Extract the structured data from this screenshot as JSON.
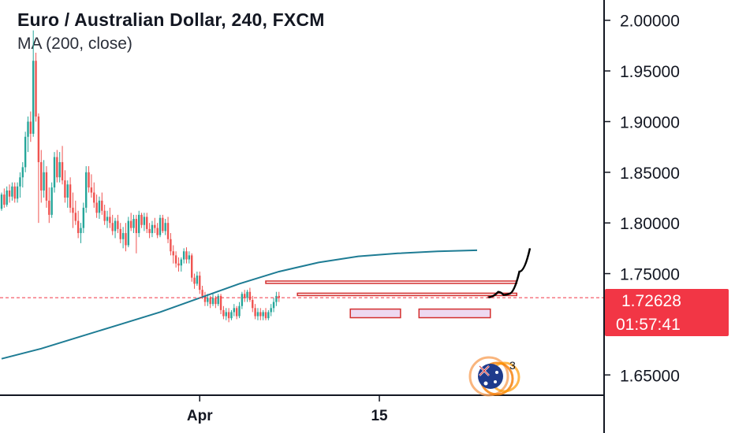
{
  "header": {
    "title": "Euro / Australian Dollar, 240, FXCM",
    "indicator": "MA (200, close)"
  },
  "price_axis": {
    "ticks": [
      "2.00000",
      "1.95000",
      "1.90000",
      "1.85000",
      "1.80000",
      "1.75000",
      "1.65000"
    ]
  },
  "time_axis": {
    "ticks": [
      "Apr",
      "15"
    ]
  },
  "last_price": {
    "value": "1.72628",
    "countdown": "01:57:41"
  },
  "badge": {
    "count": "3",
    "icon": "australia-flag-icon"
  },
  "colors": {
    "up": "#26a69a",
    "down": "#ef5350",
    "ma": "#1e7c94",
    "level": "#d32f2f",
    "price_badge": "#f23645",
    "axis": "#131722"
  },
  "chart_data": {
    "type": "candlestick",
    "title": "Euro / Australian Dollar, 240, FXCM",
    "ylim": [
      1.63,
      2.02
    ],
    "yticks": [
      2.0,
      1.95,
      1.9,
      1.85,
      1.8,
      1.75,
      1.65
    ],
    "xticks": [
      {
        "label": "Apr",
        "bar": 75
      },
      {
        "label": "15",
        "bar": 143
      }
    ],
    "candles": [
      [
        1.814,
        1.83,
        1.812,
        1.828
      ],
      [
        1.828,
        1.834,
        1.815,
        1.818
      ],
      [
        1.818,
        1.836,
        1.816,
        1.832
      ],
      [
        1.832,
        1.838,
        1.82,
        1.826
      ],
      [
        1.826,
        1.84,
        1.822,
        1.836
      ],
      [
        1.836,
        1.84,
        1.82,
        1.824
      ],
      [
        1.824,
        1.84,
        1.82,
        1.836
      ],
      [
        1.836,
        1.85,
        1.825,
        1.845
      ],
      [
        1.845,
        1.86,
        1.835,
        1.855
      ],
      [
        1.855,
        1.89,
        1.85,
        1.885
      ],
      [
        1.885,
        1.905,
        1.87,
        1.9
      ],
      [
        1.9,
        1.91,
        1.88,
        1.888
      ],
      [
        1.888,
        1.99,
        1.885,
        1.96
      ],
      [
        1.96,
        1.968,
        1.9,
        1.905
      ],
      [
        1.905,
        1.908,
        1.8,
        1.86
      ],
      [
        1.86,
        1.872,
        1.82,
        1.832
      ],
      [
        1.832,
        1.862,
        1.825,
        1.85
      ],
      [
        1.85,
        1.856,
        1.815,
        1.822
      ],
      [
        1.822,
        1.835,
        1.8,
        1.808
      ],
      [
        1.808,
        1.84,
        1.805,
        1.835
      ],
      [
        1.835,
        1.87,
        1.83,
        1.865
      ],
      [
        1.865,
        1.872,
        1.84,
        1.845
      ],
      [
        1.845,
        1.87,
        1.84,
        1.86
      ],
      [
        1.86,
        1.876,
        1.838,
        1.842
      ],
      [
        1.842,
        1.852,
        1.82,
        1.825
      ],
      [
        1.825,
        1.842,
        1.815,
        1.838
      ],
      [
        1.838,
        1.845,
        1.81,
        1.815
      ],
      [
        1.815,
        1.83,
        1.795,
        1.81
      ],
      [
        1.81,
        1.822,
        1.798,
        1.802
      ],
      [
        1.802,
        1.812,
        1.785,
        1.79
      ],
      [
        1.79,
        1.8,
        1.78,
        1.795
      ],
      [
        1.795,
        1.82,
        1.79,
        1.815
      ],
      [
        1.815,
        1.856,
        1.81,
        1.85
      ],
      [
        1.85,
        1.856,
        1.83,
        1.835
      ],
      [
        1.835,
        1.848,
        1.825,
        1.83
      ],
      [
        1.83,
        1.84,
        1.815,
        1.82
      ],
      [
        1.82,
        1.828,
        1.805,
        1.81
      ],
      [
        1.81,
        1.826,
        1.804,
        1.822
      ],
      [
        1.822,
        1.83,
        1.808,
        1.812
      ],
      [
        1.812,
        1.818,
        1.798,
        1.802
      ],
      [
        1.802,
        1.812,
        1.795,
        1.806
      ],
      [
        1.806,
        1.815,
        1.795,
        1.8
      ],
      [
        1.8,
        1.808,
        1.788,
        1.792
      ],
      [
        1.792,
        1.805,
        1.785,
        1.802
      ],
      [
        1.802,
        1.808,
        1.79,
        1.794
      ],
      [
        1.794,
        1.8,
        1.78,
        1.784
      ],
      [
        1.784,
        1.796,
        1.775,
        1.79
      ],
      [
        1.79,
        1.8,
        1.772,
        1.778
      ],
      [
        1.778,
        1.806,
        1.776,
        1.802
      ],
      [
        1.802,
        1.81,
        1.792,
        1.795
      ],
      [
        1.795,
        1.808,
        1.79,
        1.804
      ],
      [
        1.804,
        1.808,
        1.77,
        1.79
      ],
      [
        1.79,
        1.812,
        1.786,
        1.808
      ],
      [
        1.808,
        1.81,
        1.795,
        1.798
      ],
      [
        1.798,
        1.81,
        1.792,
        1.806
      ],
      [
        1.806,
        1.81,
        1.79,
        1.794
      ],
      [
        1.794,
        1.8,
        1.785,
        1.79
      ],
      [
        1.79,
        1.802,
        1.786,
        1.798
      ],
      [
        1.798,
        1.805,
        1.79,
        1.795
      ],
      [
        1.795,
        1.8,
        1.785,
        1.788
      ],
      [
        1.788,
        1.808,
        1.786,
        1.805
      ],
      [
        1.805,
        1.808,
        1.79,
        1.792
      ],
      [
        1.792,
        1.804,
        1.788,
        1.8
      ],
      [
        1.8,
        1.806,
        1.78,
        1.784
      ],
      [
        1.784,
        1.79,
        1.768,
        1.772
      ],
      [
        1.772,
        1.778,
        1.76,
        1.768
      ],
      [
        1.768,
        1.772,
        1.756,
        1.76
      ],
      [
        1.76,
        1.766,
        1.752,
        1.758
      ],
      [
        1.758,
        1.766,
        1.752,
        1.764
      ],
      [
        1.764,
        1.775,
        1.76,
        1.772
      ],
      [
        1.772,
        1.776,
        1.76,
        1.764
      ],
      [
        1.764,
        1.772,
        1.76,
        1.768
      ],
      [
        1.768,
        1.77,
        1.742,
        1.746
      ],
      [
        1.746,
        1.75,
        1.735,
        1.74
      ],
      [
        1.74,
        1.752,
        1.738,
        1.748
      ],
      [
        1.748,
        1.752,
        1.73,
        1.734
      ],
      [
        1.734,
        1.738,
        1.725,
        1.728
      ],
      [
        1.728,
        1.732,
        1.718,
        1.722
      ],
      [
        1.722,
        1.73,
        1.718,
        1.726
      ],
      [
        1.726,
        1.728,
        1.716,
        1.72
      ],
      [
        1.72,
        1.73,
        1.718,
        1.726
      ],
      [
        1.726,
        1.728,
        1.716,
        1.72
      ],
      [
        1.72,
        1.73,
        1.718,
        1.728
      ],
      [
        1.728,
        1.73,
        1.71,
        1.714
      ],
      [
        1.714,
        1.718,
        1.705,
        1.708
      ],
      [
        1.708,
        1.716,
        1.704,
        1.712
      ],
      [
        1.712,
        1.716,
        1.702,
        1.706
      ],
      [
        1.706,
        1.714,
        1.704,
        1.712
      ],
      [
        1.712,
        1.72,
        1.708,
        1.716
      ],
      [
        1.716,
        1.718,
        1.705,
        1.708
      ],
      [
        1.708,
        1.722,
        1.706,
        1.718
      ],
      [
        1.718,
        1.732,
        1.715,
        1.73
      ],
      [
        1.73,
        1.734,
        1.722,
        1.726
      ],
      [
        1.726,
        1.734,
        1.722,
        1.732
      ],
      [
        1.732,
        1.736,
        1.722,
        1.724
      ],
      [
        1.724,
        1.728,
        1.712,
        1.716
      ],
      [
        1.716,
        1.72,
        1.705,
        1.708
      ],
      [
        1.708,
        1.716,
        1.704,
        1.712
      ],
      [
        1.712,
        1.716,
        1.704,
        1.708
      ],
      [
        1.708,
        1.714,
        1.704,
        1.712
      ],
      [
        1.712,
        1.716,
        1.704,
        1.706
      ],
      [
        1.706,
        1.714,
        1.704,
        1.712
      ],
      [
        1.712,
        1.72,
        1.708,
        1.716
      ],
      [
        1.716,
        1.726,
        1.712,
        1.722
      ],
      [
        1.722,
        1.732,
        1.718,
        1.728
      ],
      [
        1.728,
        1.732,
        1.722,
        1.726
      ]
    ],
    "ma_200": [
      [
        0,
        1.666
      ],
      [
        15,
        1.676
      ],
      [
        30,
        1.688
      ],
      [
        45,
        1.7
      ],
      [
        60,
        1.712
      ],
      [
        75,
        1.726
      ],
      [
        90,
        1.74
      ],
      [
        105,
        1.752
      ],
      [
        120,
        1.761
      ],
      [
        135,
        1.767
      ],
      [
        150,
        1.77
      ],
      [
        165,
        1.772
      ],
      [
        180,
        1.773
      ]
    ],
    "levels": [
      {
        "price": 1.7415,
        "bar_start": 100,
        "bar_end": 195
      },
      {
        "price": 1.7295,
        "bar_start": 112,
        "bar_end": 195
      }
    ],
    "zones": [
      {
        "bar_start": 132,
        "bar_end": 151,
        "top": 1.715,
        "bottom": 1.7065
      },
      {
        "bar_start": 158,
        "bar_end": 185,
        "top": 1.715,
        "bottom": 1.7065
      }
    ],
    "projection": [
      [
        184,
        1.7265
      ],
      [
        188,
        1.732
      ],
      [
        190,
        1.729
      ],
      [
        192,
        1.73
      ],
      [
        196,
        1.752
      ],
      [
        200,
        1.775
      ]
    ],
    "last_price": 1.72628
  }
}
